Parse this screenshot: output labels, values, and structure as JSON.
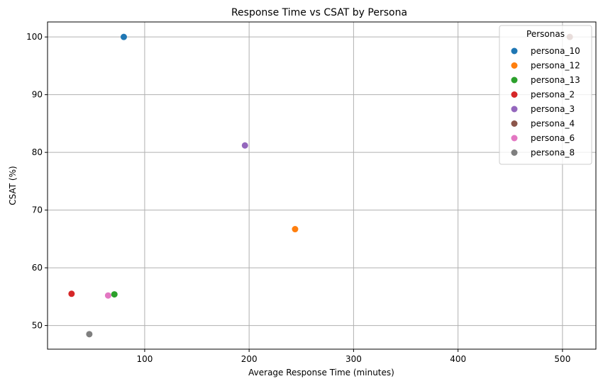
{
  "chart_data": {
    "type": "scatter",
    "title": "Response Time vs CSAT by Persona",
    "xlabel": "Average Response Time (minutes)",
    "ylabel": "CSAT (%)",
    "xlim": [
      7,
      532
    ],
    "ylim": [
      45.9,
      102.6
    ],
    "xticks": [
      100,
      200,
      300,
      400,
      500
    ],
    "yticks": [
      50,
      60,
      70,
      80,
      90,
      100
    ],
    "grid": true,
    "legend": {
      "title": "Personas",
      "placement": "top-right"
    },
    "series": [
      {
        "name": "persona_10",
        "color": "#1f77b4",
        "points": [
          {
            "x": 80,
            "y": 100
          }
        ]
      },
      {
        "name": "persona_12",
        "color": "#ff7f0e",
        "points": [
          {
            "x": 244,
            "y": 66.7
          }
        ]
      },
      {
        "name": "persona_13",
        "color": "#2ca02c",
        "points": [
          {
            "x": 71,
            "y": 55.4
          }
        ]
      },
      {
        "name": "persona_2",
        "color": "#d62728",
        "points": [
          {
            "x": 30,
            "y": 55.5
          }
        ]
      },
      {
        "name": "persona_3",
        "color": "#9467bd",
        "points": [
          {
            "x": 196,
            "y": 81.2
          }
        ]
      },
      {
        "name": "persona_4",
        "color": "#8c564b",
        "points": [
          {
            "x": 507,
            "y": 100
          }
        ]
      },
      {
        "name": "persona_6",
        "color": "#e377c2",
        "points": [
          {
            "x": 65,
            "y": 55.2
          }
        ]
      },
      {
        "name": "persona_8",
        "color": "#7f7f7f",
        "points": [
          {
            "x": 47,
            "y": 48.5
          }
        ]
      }
    ]
  }
}
